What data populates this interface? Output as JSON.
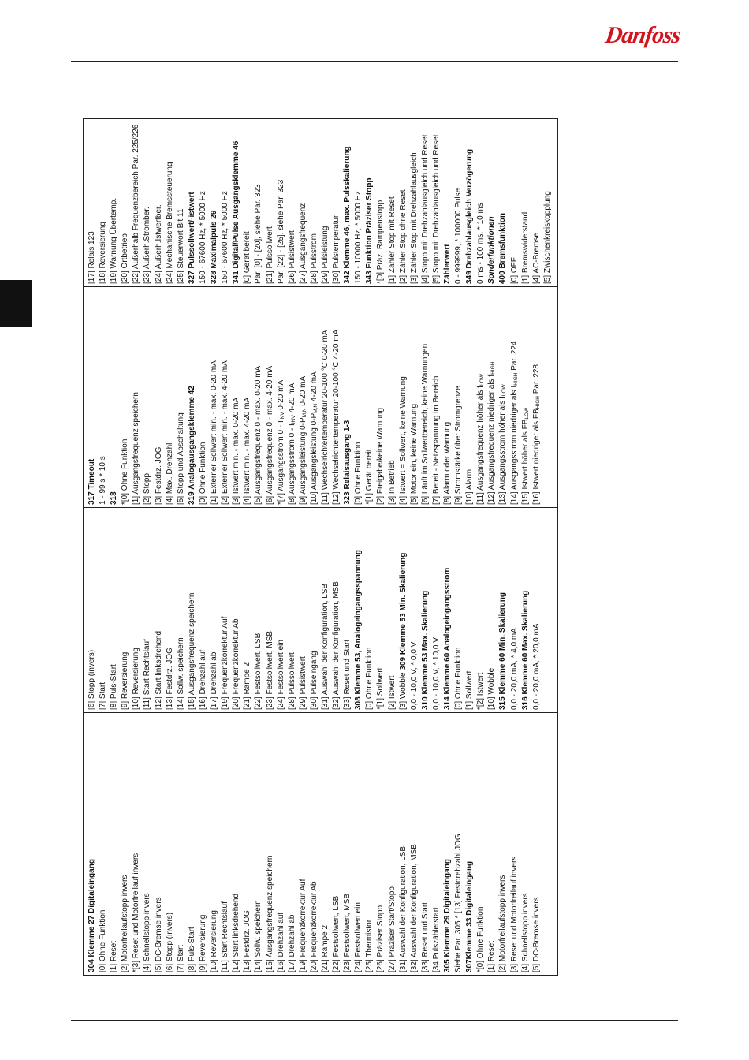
{
  "header": {
    "logo_text": "Danfoss",
    "logo_color": "#d2141e"
  },
  "table": {
    "columns": [
      [
        {
          "t": "304 Klemme 27 Digitaleingang",
          "b": true
        },
        {
          "t": "[0] Ohne Funktion"
        },
        {
          "t": "[1] Reset"
        },
        {
          "t": "[2] Motorfreilaufstopp invers"
        },
        {
          "t": "*[3] Reset und Motorfreilauf invers"
        },
        {
          "t": "[4] Schnellstopp invers"
        },
        {
          "t": "[5] DC-Bremse invers"
        },
        {
          "t": "[6] Stopp (invers)"
        },
        {
          "t": "[7] Start"
        },
        {
          "t": "[8] Puls-Start"
        },
        {
          "t": "[9] Reversierung"
        },
        {
          "t": "[10] Reversierung"
        },
        {
          "t": "[11] Start Rechtslauf"
        },
        {
          "t": "[12] Start linksdrehend"
        },
        {
          "t": "[13] Festdrz. JOG"
        },
        {
          "t": "[14] Sollw. speichern"
        },
        {
          "t": "[15] Ausgangsfrequenz speichern"
        },
        {
          "t": "[16] Drehzahl auf"
        },
        {
          "t": "[17] Drehzahl ab"
        },
        {
          "t": "[19] Frequenzkorrektur Auf"
        },
        {
          "t": "[20] Frequenzkorrektur Ab"
        },
        {
          "t": "[21] Rampe 2"
        },
        {
          "t": "[22] Festsollwert, LSB"
        },
        {
          "t": "[23] Festsollwert, MSB"
        },
        {
          "t": "[24] Festsollwert ein"
        },
        {
          "t": "[25] Thermistor"
        },
        {
          "t": "[26] Präziser Stopp"
        },
        {
          "t": "[27] Präziser Start/Stopp"
        },
        {
          "t": "[31] Auswahl der Konfiguration, LSB"
        },
        {
          "t": "[32] Auswahl der Konfiguration, MSB"
        },
        {
          "t": "[33] Reset und Start"
        },
        {
          "t": "[34 Pulszählerstart"
        },
        {
          "t": "305 Klemme 29 Digitaleingang",
          "b": true
        },
        {
          "t": "Siehe Par. 305 * [13] Festdrehzahl JOG"
        },
        {
          "t": "307Klemme 33 Digitaleingang",
          "b": true
        },
        {
          "t": "*[0] Ohne Funktion"
        },
        {
          "t": "[1] Reset"
        },
        {
          "t": "[2] Motorfreilaufstopp invers"
        },
        {
          "t": "[3] Reset und Motorfreilauf invers"
        },
        {
          "t": "[4] Schnellstopp invers"
        },
        {
          "t": "[5] DC-Bremse invers"
        }
      ],
      [
        {
          "t": "[6] Stopp (invers)"
        },
        {
          "t": "[7] Start"
        },
        {
          "t": "[8] Puls-Start"
        },
        {
          "t": "[9] Reversierung"
        },
        {
          "t": "[10] Reversierung"
        },
        {
          "t": "[11] Start Rechtslauf"
        },
        {
          "t": "[12] Start linksdrehend"
        },
        {
          "t": "[13] Festdrz. JOG"
        },
        {
          "t": "[14] Sollw. speichern"
        },
        {
          "t": "[15] Ausgangsfrequenz speichern"
        },
        {
          "t": "[16] Drehzahl auf"
        },
        {
          "t": "[17] Drehzahl ab"
        },
        {
          "t": "[19] Frequenzkorrektur Auf"
        },
        {
          "t": "[20] Frequenzkorrektur Ab"
        },
        {
          "t": "[21] Rampe 2"
        },
        {
          "t": "[22] Festsollwert, LSB"
        },
        {
          "t": "[23] Festsollwert, MSB"
        },
        {
          "t": "[24] Festsollwert ein"
        },
        {
          "t": "[28] Pulssollwert"
        },
        {
          "t": "[29] Pulsistwert"
        },
        {
          "t": "[30] Pulseingang"
        },
        {
          "t": "[31] Auswahl der Konfiguration, LSB"
        },
        {
          "t": "[32] Auswahl der Konfiguration, MSB"
        },
        {
          "t": "[33] Reset und Start"
        },
        {
          "t": "308 Klemme 53, Analogeingangsspannung",
          "b": true
        },
        {
          "t": "[0] Ohne Funktion"
        },
        {
          "t": "*[1] Sollwert"
        },
        {
          "t": "[2] Istwert"
        },
        {
          "parts": [
            {
              "t": "[3] Wobble "
            },
            {
              "t": "309 Klemme 53 Min. Skalierung",
              "b": true
            }
          ]
        },
        {
          "t": "0,0 - 10,0 V, * 0,0 V"
        },
        {
          "t": "310 Klemme 53 Max. Skalierung",
          "b": true
        },
        {
          "t": "0,0 - 10,0 V, * 10,0 V"
        },
        {
          "t": "314 Klemme 60 Analogeingangsstrom",
          "b": true
        },
        {
          "t": "[0] Ohne Funktion"
        },
        {
          "t": "[1] Sollwert"
        },
        {
          "t": "*[2] Istwert"
        },
        {
          "t": "[10] Wobble"
        },
        {
          "t": "315 Klemme 60 Min. Skalierung",
          "b": true
        },
        {
          "t": "0,0 - 20,0 mA, * 4,0 mA"
        },
        {
          "t": "316 Klemme 60 Max. Skalierung",
          "b": true
        },
        {
          "t": "0,0 - 20,0 mA, * 20,0 mA"
        }
      ],
      [
        {
          "t": "317 Timeout",
          "b": true
        },
        {
          "t": "1 - 99 s * 10 s"
        },
        {
          "t": "318",
          "b": true
        },
        {
          "t": "*[0] Ohne Funktion"
        },
        {
          "t": "[1] Ausgangsfrequenz speichern"
        },
        {
          "t": "[2] Stopp"
        },
        {
          "t": "[3] Festdrz. JOG"
        },
        {
          "t": "[4] Max. Drehzahl"
        },
        {
          "t": "[5] Stopp und Abschaltung"
        },
        {
          "t": "319 Analogausgangsklemme 42",
          "b": true
        },
        {
          "t": "[0] Ohne Funktion"
        },
        {
          "t": "[1] Externer Sollwert min. - max. 0-20 mA"
        },
        {
          "t": "[2] Externer Sollwert min. - max. 4-20 mA"
        },
        {
          "t": "[3] Istwert min. - max. 0-20 mA"
        },
        {
          "t": "[4] Istwert min. - max. 4-20 mA"
        },
        {
          "t": "[5] Ausgangsfrequenz 0 - max. 0-20 mA"
        },
        {
          "t": "[6] Ausgangsfrequenz 0 - max. 4-20 mA"
        },
        {
          "parts": [
            {
              "t": "*[7] Ausgangsstrom 0 - I"
            },
            {
              "t": "INV",
              "sub": true
            },
            {
              "t": " 0-20 mA"
            }
          ]
        },
        {
          "parts": [
            {
              "t": "[8] Ausgangsstrom 0 - I"
            },
            {
              "t": "INV",
              "sub": true
            },
            {
              "t": " 4-20 mA"
            }
          ]
        },
        {
          "parts": [
            {
              "t": "[9] Ausgangsleistung 0-P"
            },
            {
              "t": "M,N",
              "sub": true
            },
            {
              "t": " 0-20 mA"
            }
          ]
        },
        {
          "parts": [
            {
              "t": "[10] Ausgangsleistung 0-P"
            },
            {
              "t": "M,N",
              "sub": true
            },
            {
              "t": " 4-20 mA"
            }
          ]
        },
        {
          "t": "[11] Wechselrichtertemperatur 20-100 °C 0-20 mA"
        },
        {
          "t": "[12] Wechselrichtertemperatur 20-100 °C 4-20 mA"
        },
        {
          "t": "323 Relaisausgang 1-3",
          "b": true
        },
        {
          "t": "[0] Ohne Funktion"
        },
        {
          "t": "*[1] Gerät bereit"
        },
        {
          "t": "[2] Freigabe/keine Warnung"
        },
        {
          "t": "[3] In Betrieb"
        },
        {
          "t": "[4] Istwert = Sollwert, keine Warnung"
        },
        {
          "t": "[5] Motor ein, keine Warnung"
        },
        {
          "t": "[6] Läuft im Sollwertbereich, keine Warnungen"
        },
        {
          "t": "[7] Bereit - Netzspannung im Bereich"
        },
        {
          "t": "[8] Alarm oder Warnung"
        },
        {
          "t": "[9] Stromstärke über Stromgrenze"
        },
        {
          "t": "[10] Alarm"
        },
        {
          "parts": [
            {
              "t": "[11] Ausgangsfrequenz höher als f"
            },
            {
              "t": "LOW",
              "sub": true
            }
          ]
        },
        {
          "parts": [
            {
              "t": "[12] Ausgangsfrequenz niedriger als f"
            },
            {
              "t": "HIGH",
              "sub": true
            }
          ]
        },
        {
          "parts": [
            {
              "t": "[13] Ausgangsstrom höher als I"
            },
            {
              "t": "LOW",
              "sub": true
            }
          ]
        },
        {
          "parts": [
            {
              "t": "[14] Ausgangsstrom niedriger als I"
            },
            {
              "t": "HIGH",
              "sub": true
            },
            {
              "t": " Par. 224"
            }
          ]
        },
        {
          "parts": [
            {
              "t": "[15] Istwert höher als FB"
            },
            {
              "t": "LOW",
              "sub": true
            }
          ]
        },
        {
          "parts": [
            {
              "t": "[16] Istwert niedriger als FB"
            },
            {
              "t": "HIGH",
              "sub": true
            },
            {
              "t": " Par. 228"
            }
          ]
        }
      ],
      [
        {
          "t": "[17] Relais 123"
        },
        {
          "t": "[18] Reversierung"
        },
        {
          "t": "[19] Warnung Übertemp."
        },
        {
          "t": "[20] Ortbetrieb"
        },
        {
          "t": "[22] Außerhalb Frequenzbereich Par. 225/226"
        },
        {
          "t": "[23] Außerh.Stromber."
        },
        {
          "t": "[24] Außerh.Istwertber."
        },
        {
          "t": "[24] Mechanische Bremssteuerung"
        },
        {
          "t": "[25] Steuerwort Bit 11"
        },
        {
          "t": "327 Pulssollwert/-istwert",
          "b": true
        },
        {
          "t": "150 - 67600 Hz, * 5000 Hz"
        },
        {
          "t": "328 Maximalpuls 29",
          "b": true
        },
        {
          "t": "150 - 67600 Hz, * 5000 Hz"
        },
        {
          "t": "341 Digital/Pulse Ausgangsklemme 46",
          "b": true
        },
        {
          "t": "[0] Gerät bereit"
        },
        {
          "t": "Par. [0] - [20], siehe Par. 323"
        },
        {
          "t": "[21] Pulssollwert"
        },
        {
          "t": "Par. [22] - [25], siehe Par. 323"
        },
        {
          "t": "[26] Pulsistwert"
        },
        {
          "t": "[27] Ausgangsfrequenz"
        },
        {
          "t": "[28] Pulsstrom"
        },
        {
          "t": "[29] Pulsleistung"
        },
        {
          "t": "[30] Pulstemperatur"
        },
        {
          "t": "342 Klemme 46, max. Pulsskalierung",
          "b": true
        },
        {
          "t": "150 - 10000 Hz, * 5000 Hz"
        },
        {
          "t": "343 Funktion Präziser Stopp",
          "b": true
        },
        {
          "t": "*[0] Präz. Rampenstopp"
        },
        {
          "t": "[1] Zähler Stop mit Reset"
        },
        {
          "t": "[2] Zähler Stop ohne Reset"
        },
        {
          "t": "[3] Zähler Stop mit Drehzahlausgleich"
        },
        {
          "t": "[4] Stopp mit Drehzahlausgleich und Reset"
        },
        {
          "t": "[5] Stopp mit Drehzahlausgleich und Reset"
        },
        {
          "t": "Zählerwert",
          "b": true
        },
        {
          "t": "0 - 999999, * 100000 Pulse"
        },
        {
          "t": "349 Drehzahlausgleich Verzögerung",
          "b": true
        },
        {
          "t": "0 ms - 100 ms, * 10 ms"
        },
        {
          "t": "Sonderfunktionen",
          "bi": true
        },
        {
          "t": "400 Bremsfunktion",
          "b": true
        },
        {
          "t": "[0] OFF"
        },
        {
          "t": "[1] Bremswiderstand"
        },
        {
          "t": "[4] AC-Bremse"
        },
        {
          "t": "[5] Zwischenkreiskopplung"
        }
      ]
    ]
  }
}
